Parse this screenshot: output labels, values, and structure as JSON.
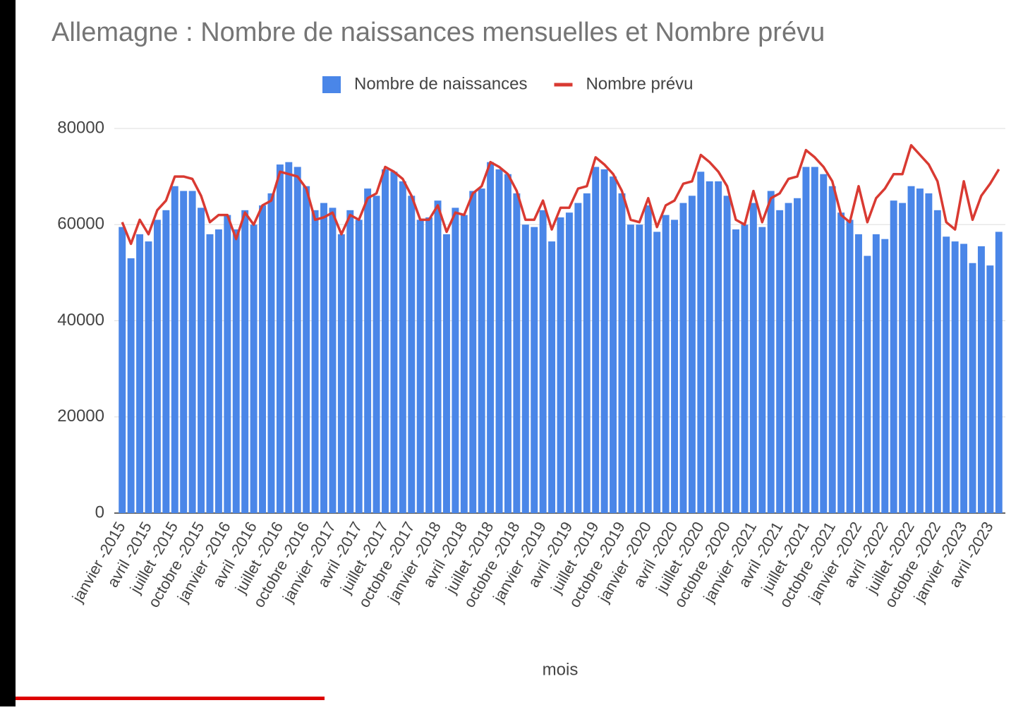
{
  "chart_data": {
    "type": "bar_line",
    "title": "Allemagne : Nombre de naissances mensuelles et Nombre prévu",
    "x_label": "mois",
    "categories": [
      "janvier -2015",
      null,
      null,
      "avril -2015",
      null,
      null,
      "juillet -2015",
      null,
      null,
      "octobre -2015",
      null,
      null,
      "janvier -2016",
      null,
      null,
      "avril -2016",
      null,
      null,
      "juillet -2016",
      null,
      null,
      "octobre -2016",
      null,
      null,
      "janvier -2017",
      null,
      null,
      "avril -2017",
      null,
      null,
      "juillet -2017",
      null,
      null,
      "octobre -2017",
      null,
      null,
      "janvier -2018",
      null,
      null,
      "avril -2018",
      null,
      null,
      "juillet -2018",
      null,
      null,
      "octobre -2018",
      null,
      null,
      "janvier -2019",
      null,
      null,
      "avril -2019",
      null,
      null,
      "juillet -2019",
      null,
      null,
      "octobre -2019",
      null,
      null,
      "janvier -2020",
      null,
      null,
      "avril -2020",
      null,
      null,
      "juillet -2020",
      null,
      null,
      "octobre -2020",
      null,
      null,
      "janvier -2021",
      null,
      null,
      "avril -2021",
      null,
      null,
      "juillet -2021",
      null,
      null,
      "octobre -2021",
      null,
      null,
      "janvier -2022",
      null,
      null,
      "avril -2022",
      null,
      null,
      "juillet -2022",
      null,
      null,
      "octobre -2022",
      null,
      null,
      "janvier -2023",
      null,
      null,
      "avril -2023",
      null
    ],
    "series": [
      {
        "name": "Nombre de naissances",
        "kind": "bar",
        "color": "#4a86e8",
        "values": [
          59500,
          53000,
          58000,
          56500,
          61000,
          63000,
          68000,
          67000,
          67000,
          63500,
          58000,
          59000,
          62000,
          59000,
          63000,
          60000,
          64000,
          66500,
          72500,
          73000,
          72000,
          68000,
          63000,
          64500,
          63500,
          58000,
          63000,
          61000,
          67500,
          66000,
          71500,
          71000,
          69000,
          66000,
          61000,
          61500,
          65000,
          58000,
          63500,
          62000,
          67000,
          67500,
          73000,
          71500,
          70500,
          66500,
          60000,
          59500,
          63000,
          56500,
          61500,
          62500,
          64500,
          66500,
          72000,
          71500,
          70000,
          66500,
          60000,
          60000,
          64000,
          58500,
          62000,
          61000,
          64500,
          66000,
          71000,
          69000,
          69000,
          66000,
          59000,
          60000,
          64500,
          59500,
          67000,
          63000,
          64500,
          65500,
          72000,
          72000,
          70500,
          68000,
          62500,
          61000,
          58000,
          53500,
          58000,
          57000,
          65000,
          64500,
          68000,
          67500,
          66500,
          63000,
          57500,
          56500,
          56000,
          52000,
          55500,
          51500,
          58500
        ]
      },
      {
        "name": "Nombre prévu",
        "kind": "line",
        "color": "#d93a32",
        "values": [
          60500,
          56000,
          61000,
          58000,
          63000,
          65000,
          70000,
          70000,
          69500,
          66000,
          60500,
          62000,
          62000,
          57000,
          62500,
          60000,
          64000,
          65000,
          71000,
          70500,
          70000,
          67500,
          61000,
          61500,
          62500,
          58000,
          62000,
          61000,
          65500,
          66500,
          72000,
          71000,
          69500,
          66000,
          61000,
          61000,
          64000,
          58500,
          62500,
          62000,
          66500,
          68000,
          73000,
          72000,
          70500,
          67000,
          61000,
          61000,
          65000,
          59000,
          63500,
          63500,
          67500,
          68000,
          74000,
          72500,
          70500,
          67000,
          61000,
          60500,
          65500,
          59500,
          64000,
          65000,
          68500,
          69000,
          74500,
          73000,
          71000,
          68000,
          61000,
          60000,
          67000,
          60500,
          65500,
          66500,
          69500,
          70000,
          75500,
          74000,
          72000,
          69000,
          62000,
          60500,
          68000,
          60500,
          65500,
          67500,
          70500,
          70500,
          76500,
          74500,
          72500,
          69000,
          60500,
          59000,
          69000,
          61000,
          66000,
          68500,
          71500
        ]
      }
    ],
    "ylim": [
      0,
      80000
    ],
    "yticks": [
      0,
      20000,
      40000,
      60000,
      80000
    ],
    "grid": true,
    "legend": "top"
  }
}
